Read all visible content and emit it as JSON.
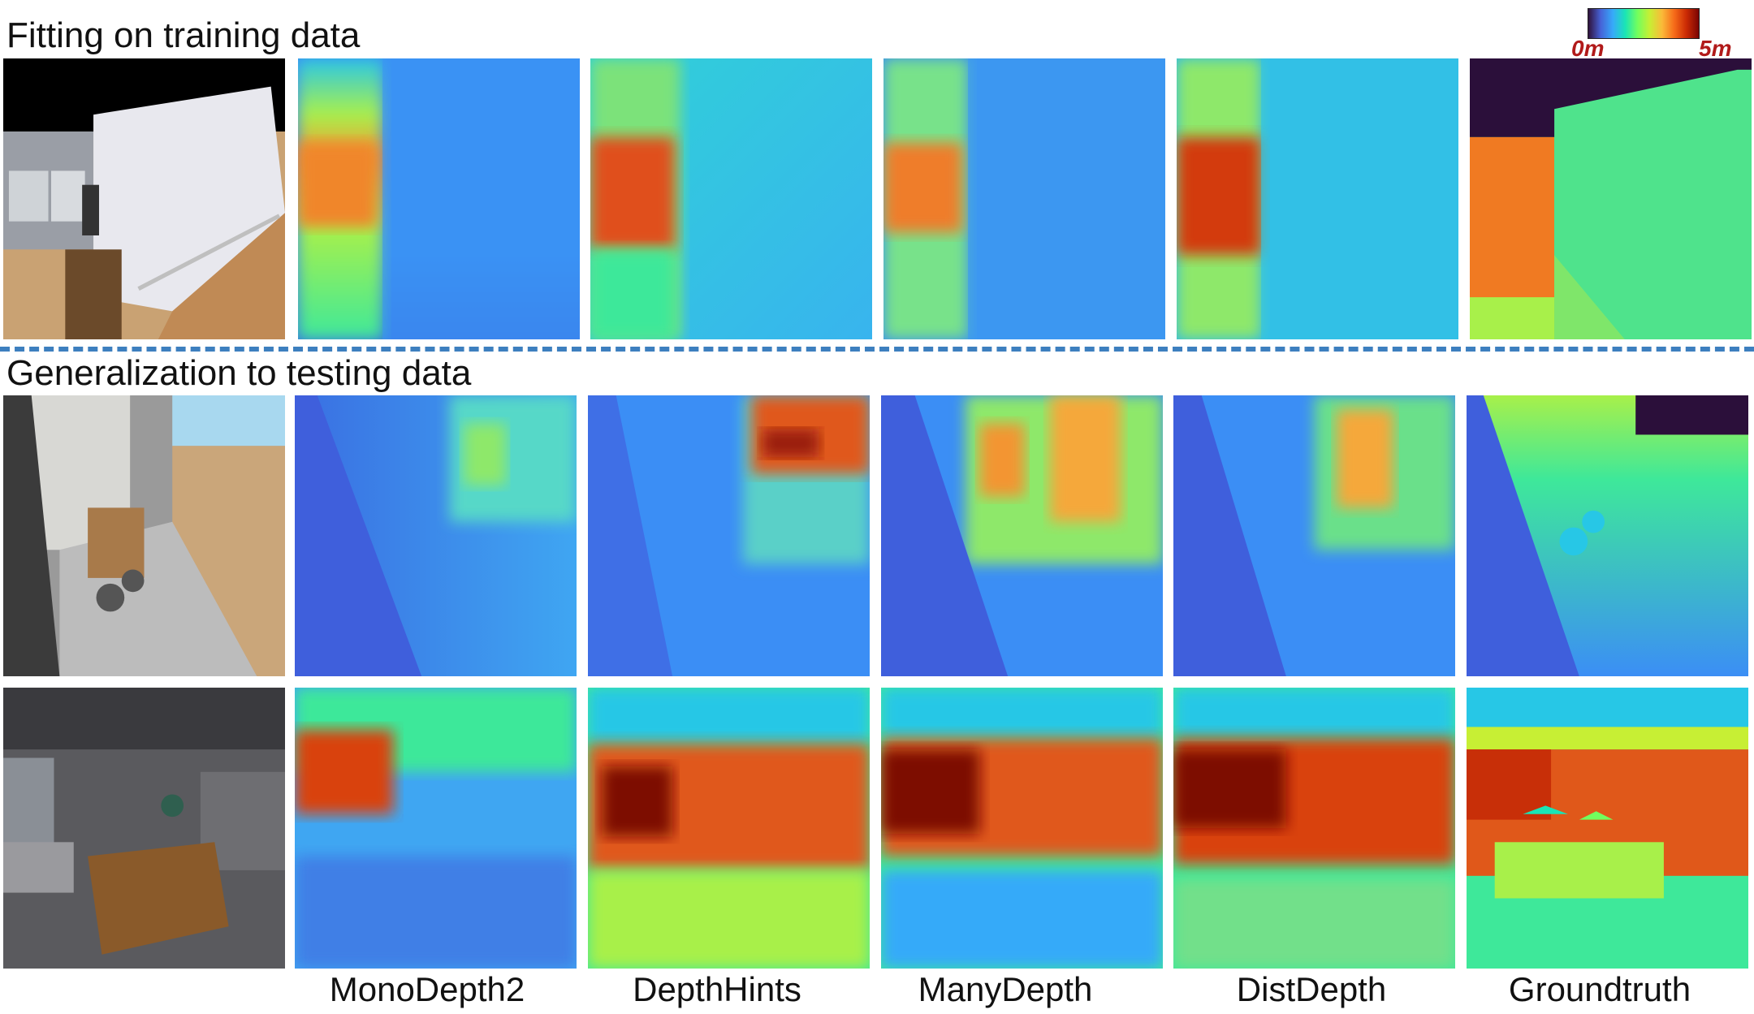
{
  "sections": {
    "train_title": "Fitting on training data",
    "test_title": "Generalization to testing data"
  },
  "colorbar": {
    "min_label": "0m",
    "max_label": "5m",
    "colormap": "turbo"
  },
  "methods": [
    "MonoDepth2",
    "DepthHints",
    "ManyDepth",
    "DistDepth",
    "Groundtruth"
  ],
  "palette": {
    "deep_blue": "#3f5fdc",
    "blue": "#3b8ef5",
    "cyan": "#27c7e6",
    "green": "#3ee89a",
    "yellow_green": "#a8f04a",
    "orange": "#f39533",
    "red": "#d9430f",
    "dark_red": "#7d0a03",
    "void": "#2b0f3a",
    "divider": "#3d7fbf"
  }
}
